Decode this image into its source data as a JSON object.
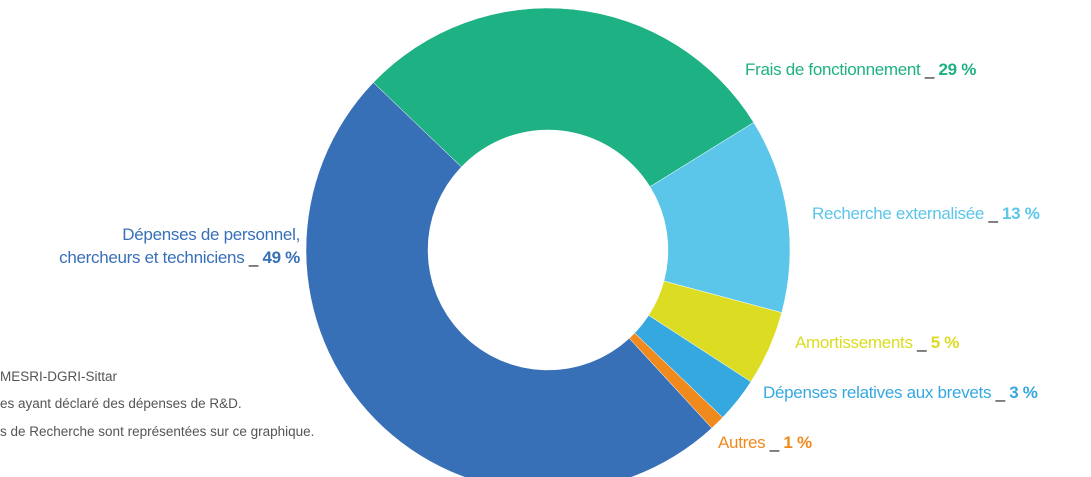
{
  "chart_data": {
    "type": "pie",
    "categories": [
      "Frais de fonctionnement",
      "Recherche externalisée",
      "Amortissements",
      "Dépenses relatives aux brevets",
      "Autres",
      "Dépenses de personnel,\nchercheurs et techniciens"
    ],
    "values": [
      29,
      13,
      5,
      3,
      1,
      49
    ],
    "value_labels": [
      "29 %",
      "13 %",
      "5 %",
      "3 %",
      "1 %",
      "49 %"
    ],
    "colors": [
      "#1db183",
      "#5bc5ea",
      "#dcdc22",
      "#36a8e0",
      "#f08a1c",
      "#3870b8"
    ],
    "separator": "_",
    "hole": true,
    "footnotes": [
      "MESRI-DGRI-Sittar",
      "es ayant déclaré des dépenses de R&D.",
      "s de Recherche sont représentées sur ce graphique."
    ]
  }
}
